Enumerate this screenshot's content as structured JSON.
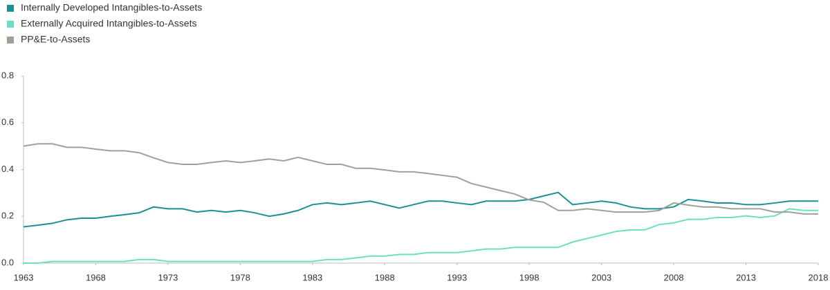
{
  "chart_data": {
    "type": "line",
    "x": [
      1963,
      1964,
      1965,
      1966,
      1967,
      1968,
      1969,
      1970,
      1971,
      1972,
      1973,
      1974,
      1975,
      1976,
      1977,
      1978,
      1979,
      1980,
      1981,
      1982,
      1983,
      1984,
      1985,
      1986,
      1987,
      1988,
      1989,
      1990,
      1991,
      1992,
      1993,
      1994,
      1995,
      1996,
      1997,
      1998,
      1999,
      2000,
      2001,
      2002,
      2003,
      2004,
      2005,
      2006,
      2007,
      2008,
      2009,
      2010,
      2011,
      2012,
      2013,
      2014,
      2015,
      2016,
      2017,
      2018
    ],
    "series": [
      {
        "name": "Internally Developed Intangibles-to-Assets",
        "color": "#1a8f96",
        "values": [
          0.155,
          0.162,
          0.17,
          0.185,
          0.192,
          0.192,
          0.2,
          0.207,
          0.215,
          0.24,
          0.232,
          0.232,
          0.218,
          0.225,
          0.218,
          0.225,
          0.215,
          0.2,
          0.21,
          0.225,
          0.25,
          0.257,
          0.25,
          0.257,
          0.265,
          0.25,
          0.235,
          0.25,
          0.265,
          0.265,
          0.257,
          0.25,
          0.265,
          0.265,
          0.265,
          0.272,
          0.287,
          0.302,
          0.25,
          0.257,
          0.265,
          0.257,
          0.24,
          0.232,
          0.232,
          0.24,
          0.272,
          0.265,
          0.257,
          0.257,
          0.25,
          0.25,
          0.257,
          0.265,
          0.265,
          0.265
        ]
      },
      {
        "name": "Externally Acquired Intangibles-to-Assets",
        "color": "#6cdec8",
        "values": [
          0,
          0,
          0.007,
          0.007,
          0.007,
          0.007,
          0.007,
          0.007,
          0.015,
          0.015,
          0.007,
          0.007,
          0.007,
          0.007,
          0.007,
          0.007,
          0.007,
          0.007,
          0.007,
          0.007,
          0.007,
          0.015,
          0.015,
          0.022,
          0.03,
          0.03,
          0.037,
          0.037,
          0.045,
          0.045,
          0.045,
          0.052,
          0.06,
          0.06,
          0.067,
          0.067,
          0.067,
          0.067,
          0.09,
          0.105,
          0.12,
          0.135,
          0.142,
          0.142,
          0.165,
          0.172,
          0.187,
          0.187,
          0.195,
          0.195,
          0.202,
          0.195,
          0.202,
          0.232,
          0.225,
          0.225
        ]
      },
      {
        "name": "PP&E-to-Assets",
        "color": "#98a595",
        "values": [
          0.5,
          0.51,
          0.51,
          0.495,
          0.495,
          0.487,
          0.48,
          0.48,
          0.472,
          0.45,
          0.43,
          0.422,
          0.422,
          0.43,
          0.437,
          0.43,
          0.437,
          0.445,
          0.437,
          0.452,
          0.437,
          0.422,
          0.422,
          0.405,
          0.405,
          0.398,
          0.39,
          0.39,
          0.383,
          0.375,
          0.367,
          0.34,
          0.325,
          0.31,
          0.295,
          0.27,
          0.26,
          0.225,
          0.225,
          0.232,
          0.225,
          0.218,
          0.218,
          0.218,
          0.225,
          0.257,
          0.248,
          0.24,
          0.24,
          0.232,
          0.232,
          0.232,
          0.218,
          0.218,
          0.21,
          0.21
        ]
      }
    ],
    "xlim": [
      1963,
      2018
    ],
    "xticks": [
      1963,
      1968,
      1973,
      1978,
      1983,
      1988,
      1993,
      1998,
      2003,
      2008,
      2013,
      2018
    ],
    "ylim": [
      0,
      0.8
    ],
    "yticks": [
      {
        "value": 0,
        "label": "0.0"
      },
      0.2,
      0.4,
      0.6,
      0.8
    ],
    "legend": "top-left"
  }
}
